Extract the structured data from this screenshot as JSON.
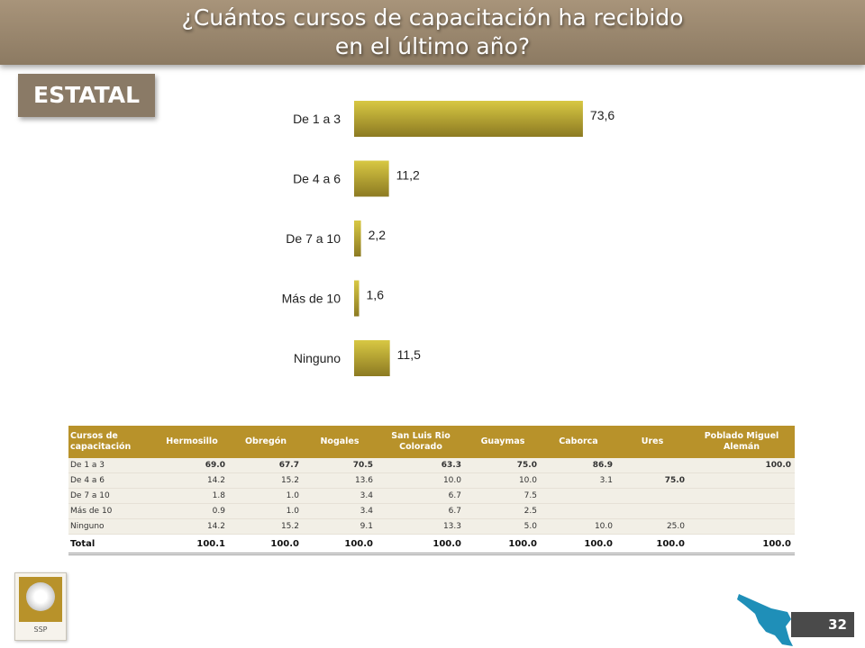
{
  "header": {
    "title_line1": "¿Cuántos cursos de capacitación ha recibido",
    "title_line2": "en el último año?"
  },
  "section_badge": "ESTATAL",
  "chart_data": {
    "type": "bar",
    "orientation": "horizontal",
    "categories": [
      "De 1 a 3",
      "De 4 a 6",
      "De 7 a 10",
      "Más de 10",
      "Ninguno"
    ],
    "values": [
      73.6,
      11.2,
      2.2,
      1.6,
      11.5
    ],
    "value_labels": [
      "73,6",
      "11,2",
      "2,2",
      "1,6",
      "11,5"
    ],
    "xlim": [
      0,
      100
    ],
    "grid": false,
    "colors": {
      "bar_light": "#d8c843",
      "bar_dark": "#8c7a22"
    }
  },
  "table": {
    "headers": [
      "Cursos de capacitación",
      "Hermosillo",
      "Obregón",
      "Nogales",
      "San Luis Rio Colorado",
      "Guaymas",
      "Caborca",
      "Ures",
      "Poblado Miguel Alemán"
    ],
    "rows": [
      {
        "label": "De 1 a 3",
        "cells": [
          "69.0",
          "67.7",
          "70.5",
          "63.3",
          "75.0",
          "86.9",
          "",
          "100.0"
        ]
      },
      {
        "label": "De 4 a 6",
        "cells": [
          "14.2",
          "15.2",
          "13.6",
          "10.0",
          "10.0",
          "3.1",
          "75.0",
          ""
        ]
      },
      {
        "label": "De 7 a 10",
        "cells": [
          "1.8",
          "1.0",
          "3.4",
          "6.7",
          "7.5",
          "",
          "",
          ""
        ]
      },
      {
        "label": "Más de 10",
        "cells": [
          "0.9",
          "1.0",
          "3.4",
          "6.7",
          "2.5",
          "",
          "",
          ""
        ]
      },
      {
        "label": "Ninguno",
        "cells": [
          "14.2",
          "15.2",
          "9.1",
          "13.3",
          "5.0",
          "10.0",
          "25.0",
          ""
        ]
      }
    ],
    "bold_cells": [
      [
        0,
        0
      ],
      [
        0,
        1
      ],
      [
        0,
        2
      ],
      [
        0,
        3
      ],
      [
        0,
        4
      ],
      [
        0,
        5
      ],
      [
        0,
        7
      ],
      [
        1,
        6
      ]
    ],
    "total": {
      "label": "Total",
      "cells": [
        "100.1",
        "100.0",
        "100.0",
        "100.0",
        "100.0",
        "100.0",
        "100.0",
        "100.0"
      ]
    }
  },
  "footer": {
    "logo_text": "SSP",
    "page_number": "32"
  },
  "colors": {
    "title_bar": "#9a8870",
    "badge": "#8a7a66",
    "table_header": "#b8922a",
    "map": "#1f8fb8",
    "page_number_bg": "#4a4a4a"
  },
  "icons": {
    "logo": "state-seal-icon",
    "map": "sonora-map-icon"
  }
}
